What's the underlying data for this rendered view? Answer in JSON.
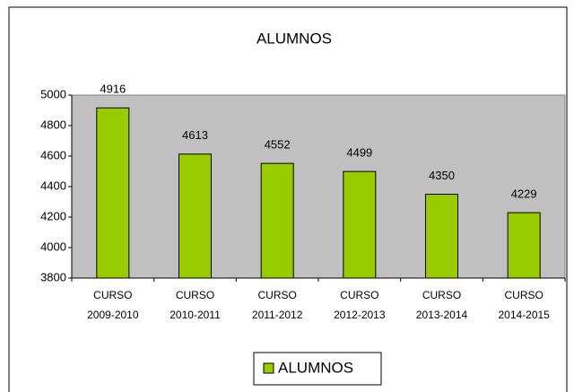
{
  "chart_data": {
    "type": "bar",
    "title": "ALUMNOS",
    "categories": [
      [
        "CURSO",
        "2009-2010"
      ],
      [
        "CURSO",
        "2010-2011"
      ],
      [
        "CURSO",
        "2011-2012"
      ],
      [
        "CURSO",
        "2012-2013"
      ],
      [
        "CURSO",
        "2013-2014"
      ],
      [
        "CURSO",
        "2014-2015"
      ]
    ],
    "series": [
      {
        "name": "ALUMNOS",
        "color": "#99cc00",
        "values": [
          4916,
          4613,
          4552,
          4499,
          4350,
          4229
        ]
      }
    ],
    "ylim": [
      3800,
      5000
    ],
    "yticks": [
      3800,
      4000,
      4200,
      4400,
      4600,
      4800,
      5000
    ],
    "legend": "bottom"
  }
}
